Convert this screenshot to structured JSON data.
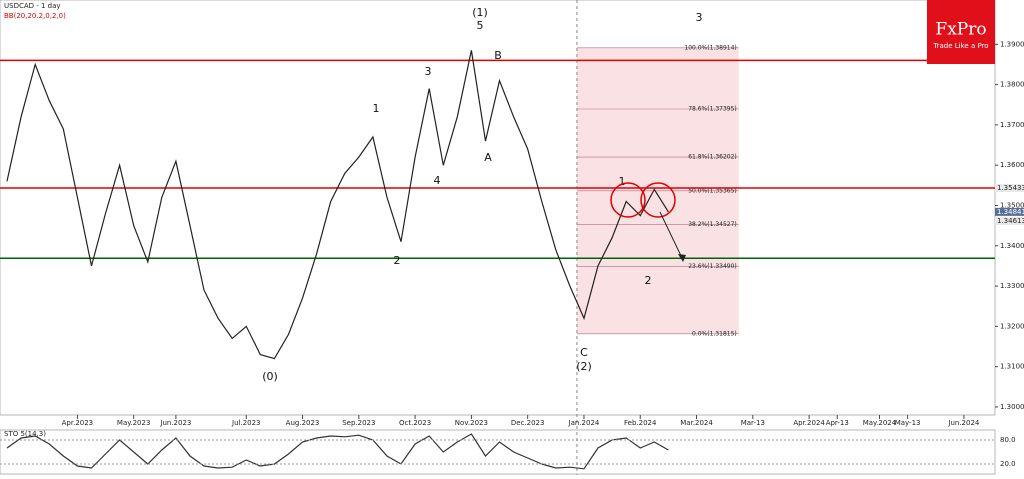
{
  "chart_data": [
    {
      "type": "line",
      "title": "USDCAD - 1 day",
      "subtitle": "BB(20,20.2,0,2,0)",
      "categories": [
        null,
        null,
        null,
        null,
        null,
        "Apr.2023",
        null,
        null,
        null,
        "May.2023",
        null,
        null,
        "Jun.2023",
        null,
        null,
        null,
        null,
        "Jul.2023",
        null,
        null,
        null,
        "Aug.2023",
        null,
        null,
        null,
        "Sep.2023",
        null,
        null,
        null,
        "Oct.2023",
        null,
        null,
        null,
        "Nov.2023",
        null,
        null,
        null,
        "Dec.2023",
        null,
        null,
        null,
        "Jan.2024",
        null,
        null,
        null,
        "Feb.2024",
        null,
        null,
        null,
        "Mar.2024",
        null,
        null,
        null,
        "Mar-13",
        null,
        null,
        null,
        "Apr.2024",
        null,
        "Apr-13",
        null,
        null,
        "May.2024",
        null,
        "May-13",
        null,
        null,
        null,
        "Jun.2024",
        null
      ],
      "series": [
        {
          "name": "USDCAD",
          "color": "#222222",
          "values": [
            1.356,
            1.372,
            1.385,
            1.376,
            1.369,
            1.352,
            1.335,
            1.348,
            1.36,
            1.345,
            1.336,
            1.352,
            1.361,
            1.345,
            1.329,
            1.322,
            1.317,
            1.32,
            1.313,
            1.312,
            1.318,
            1.327,
            1.338,
            1.351,
            1.358,
            1.362,
            1.367,
            1.352,
            1.341,
            1.362,
            1.379,
            1.36,
            1.372,
            1.3885,
            1.366,
            1.381,
            1.372,
            1.364,
            1.351,
            1.339,
            1.33,
            1.322,
            1.335,
            1.342,
            1.351,
            1.3475,
            1.354,
            1.3484,
            null,
            null,
            null,
            null,
            null,
            null,
            null,
            null,
            null,
            null,
            null,
            null,
            null,
            null,
            null,
            null,
            null,
            null,
            null,
            null,
            null,
            null
          ]
        }
      ],
      "ylim": [
        1.298,
        1.401
      ],
      "yticks": [
        {
          "value": 1.3,
          "label": "1.30000"
        },
        {
          "value": 1.31,
          "label": "1.31000"
        },
        {
          "value": 1.32,
          "label": "1.32000"
        },
        {
          "value": 1.33,
          "label": "1.33000"
        },
        {
          "value": 1.34,
          "label": "1.34000"
        },
        {
          "value": 1.35,
          "label": "1.35000"
        },
        {
          "value": 1.36,
          "label": "1.36000"
        },
        {
          "value": 1.37,
          "label": "1.37000"
        },
        {
          "value": 1.38,
          "label": "1.38000"
        },
        {
          "value": 1.39,
          "label": "1.39000"
        }
      ],
      "levels": [
        {
          "value": 1.386,
          "color": "#e00000"
        },
        {
          "value": 1.35433,
          "color": "#e00000"
        },
        {
          "value": 1.3369,
          "color": "#006400"
        }
      ],
      "price_tags": [
        {
          "value": 1.35433,
          "label": "1.35433"
        },
        {
          "value": 1.34841,
          "label": "1.34841"
        },
        {
          "value": 1.34613,
          "label": "1.34613"
        }
      ],
      "fib_levels": [
        {
          "value": 1.38914,
          "label": "100.0%(1.38914)"
        },
        {
          "value": 1.37395,
          "label": "78.6%(1.37395)"
        },
        {
          "value": 1.36202,
          "label": "61.8%(1.36202)"
        },
        {
          "value": 1.35365,
          "label": "50.0%(1.35365)"
        },
        {
          "value": 1.34527,
          "label": "38.2%(1.34527)"
        },
        {
          "value": 1.3349,
          "label": "23.6%(1.33490)"
        },
        {
          "value": 1.31815,
          "label": "0.0%(1.31815)"
        }
      ],
      "annotations": [
        "(1)",
        "5",
        "3",
        "1",
        "4",
        "2",
        "(0)",
        "(2)",
        "C",
        "A",
        "B",
        "1",
        "2",
        "3"
      ]
    },
    {
      "type": "line",
      "title": "STO 5(14,3)",
      "series": [
        {
          "name": "STO",
          "color": "#333333",
          "values": [
            60,
            85,
            90,
            70,
            40,
            15,
            10,
            45,
            80,
            50,
            20,
            55,
            85,
            40,
            15,
            10,
            12,
            30,
            15,
            20,
            45,
            75,
            85,
            90,
            88,
            92,
            80,
            40,
            20,
            70,
            90,
            50,
            75,
            95,
            40,
            75,
            50,
            35,
            20,
            10,
            12,
            8,
            60,
            80,
            85,
            60,
            75,
            55,
            null,
            null,
            null,
            null,
            null,
            null,
            null,
            null,
            null,
            null,
            null,
            null,
            null,
            null,
            null,
            null,
            null,
            null,
            null,
            null,
            null,
            null
          ]
        }
      ],
      "ylim": [
        0,
        100
      ],
      "yticks": [
        {
          "value": 20,
          "label": "20.0"
        },
        {
          "value": 80,
          "label": "80.0"
        }
      ]
    }
  ],
  "logo": {
    "name": "FxPro",
    "tagline": "Trade Like a Pro"
  }
}
